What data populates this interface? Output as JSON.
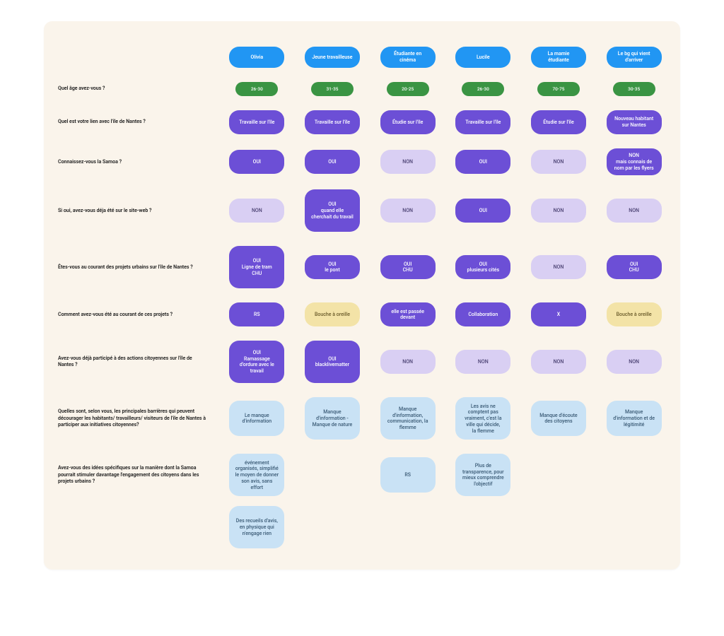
{
  "colors": {
    "board_bg": "#faf4eb",
    "header_bg": "#2196f3",
    "age_bg": "#3a9443",
    "purple_bg": "#6c4fd6",
    "lilac_bg": "#d9cff3",
    "yellow_bg": "#f3e3a7",
    "sky_bg": "#c9e2f5",
    "text_dark": "#1a1a1a",
    "text_light": "#ffffff"
  },
  "personas": [
    "Olivia",
    "Jeune travailleuse",
    "Étudiante en cinéma",
    "Lucile",
    "La mamie étudiante",
    "Le bg qui vient d'arriver"
  ],
  "rows": [
    {
      "label": "Quel âge avez-vous ?",
      "cells": [
        {
          "text": "26-30",
          "style": "age"
        },
        {
          "text": "31-35",
          "style": "age"
        },
        {
          "text": "20-25",
          "style": "age"
        },
        {
          "text": "26-30",
          "style": "age"
        },
        {
          "text": "70-75",
          "style": "age"
        },
        {
          "text": "30-35",
          "style": "age"
        }
      ]
    },
    {
      "label": "Quel est votre lien avec l'île de Nantes ?",
      "cells": [
        {
          "text": "Travaille sur l'île",
          "style": "purple"
        },
        {
          "text": "Travaille sur l'île",
          "style": "purple"
        },
        {
          "text": "Étudie sur l'île",
          "style": "purple"
        },
        {
          "text": "Travaille sur l'île",
          "style": "purple"
        },
        {
          "text": "Étudie sur l'île",
          "style": "purple"
        },
        {
          "text": "Nouveau habitant sur Nantes",
          "style": "purple"
        }
      ]
    },
    {
      "label": "Connaissez-vous la Samoa ?",
      "cells": [
        {
          "text": "OUI",
          "style": "purple"
        },
        {
          "text": "OUI",
          "style": "purple"
        },
        {
          "text": "NON",
          "style": "lilac"
        },
        {
          "text": "OUI",
          "style": "purple"
        },
        {
          "text": "NON",
          "style": "lilac"
        },
        {
          "text": "NON\nmais connais de nom par les flyers",
          "style": "purple"
        }
      ]
    },
    {
      "label": "Si oui, avez-vous déja été sur le site-web ?",
      "cells": [
        {
          "text": "NON",
          "style": "lilac"
        },
        {
          "text": "OUI\nquand elle cherchait du travail",
          "style": "purple",
          "tall": true
        },
        {
          "text": "NON",
          "style": "lilac"
        },
        {
          "text": "OUI",
          "style": "purple"
        },
        {
          "text": "NON",
          "style": "lilac"
        },
        {
          "text": "NON",
          "style": "lilac"
        }
      ]
    },
    {
      "label": "Êtes-vous au courant des projets urbains sur l'île de Nantes ?",
      "cells": [
        {
          "text": "OUI\nLigne de tram\nCHU",
          "style": "purple",
          "tall": true
        },
        {
          "text": "OUI\nle pont",
          "style": "purple"
        },
        {
          "text": "OUI\nCHU",
          "style": "purple"
        },
        {
          "text": "OUI\nplusieurs cités",
          "style": "purple"
        },
        {
          "text": "NON",
          "style": "lilac"
        },
        {
          "text": "OUI\nCHU",
          "style": "purple"
        }
      ]
    },
    {
      "label": "Comment avez-vous été au courant de ces projets ?",
      "cells": [
        {
          "text": "RS",
          "style": "purple"
        },
        {
          "text": "Bouche à oreille",
          "style": "yellow"
        },
        {
          "text": "elle est passée devant",
          "style": "purple"
        },
        {
          "text": "Collaboration",
          "style": "purple"
        },
        {
          "text": "X",
          "style": "purple"
        },
        {
          "text": "Bouche à oreille",
          "style": "yellow"
        }
      ]
    },
    {
      "label": "Avez-vous déjà participé à des actions citoyennes sur l'île de Nantes ?",
      "cells": [
        {
          "text": "OUI\nRamassage d'ordure avec le travail",
          "style": "purple",
          "tall": true
        },
        {
          "text": "OUI\nblacklivematter",
          "style": "purple",
          "tall": true
        },
        {
          "text": "NON",
          "style": "lilac"
        },
        {
          "text": "NON",
          "style": "lilac"
        },
        {
          "text": "NON",
          "style": "lilac"
        },
        {
          "text": "NON",
          "style": "lilac"
        }
      ]
    },
    {
      "label": "Quelles sont, selon vous, les principales barrières qui peuvent décourager les habitants/ travailleurs/ visiteurs de l'île de Nantes à participer aux initiatives citoyennes?",
      "cells": [
        {
          "text": "Le manque d'information",
          "style": "sky"
        },
        {
          "text": "Manque d'information -\nManque de nature",
          "style": "sky",
          "tall": true
        },
        {
          "text": "Manque d'information, communication, la flemme",
          "style": "sky",
          "tall": true
        },
        {
          "text": "Les avis ne comptent pas vraiment, c'est la ville qui décide,\nla flemme",
          "style": "sky",
          "tall": true
        },
        {
          "text": "Manque d'écoute des citoyens",
          "style": "sky"
        },
        {
          "text": "Manque d'information et de légitimité",
          "style": "sky"
        }
      ]
    },
    {
      "label": "Avez-vous des idées spécifiques sur la manière dont la Samoa pourrait stimuler davantage l'engagement des citoyens dans les projets urbains ?",
      "cells": [
        {
          "text": "événement organisés, simplifié le moyen de donner son avis, sans effort",
          "style": "sky",
          "tall": true
        },
        {
          "text": "",
          "style": "empty"
        },
        {
          "text": "RS",
          "style": "sky"
        },
        {
          "text": "Plus de transparence, pour mieux comprendre l'objectif",
          "style": "sky",
          "tall": true
        },
        {
          "text": "",
          "style": "empty"
        },
        {
          "text": "",
          "style": "empty"
        }
      ]
    }
  ],
  "extra_cell": {
    "text": "Des recueils d'avis, en physique qui n'engage rien",
    "style": "sky",
    "tall": true
  }
}
